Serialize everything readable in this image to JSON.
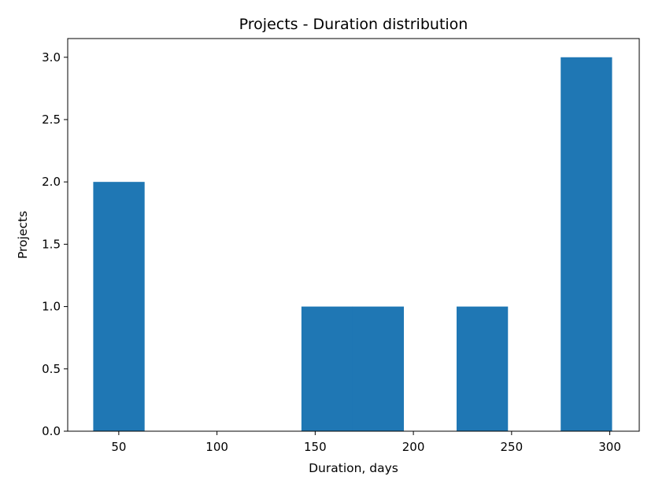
{
  "chart_data": {
    "type": "bar",
    "title": "Projects - Duration distribution",
    "xlabel": "Duration, days",
    "ylabel": "Projects",
    "xlim": [
      24,
      315
    ],
    "ylim": [
      0,
      3.15
    ],
    "xticks": [
      50,
      100,
      150,
      200,
      250,
      300
    ],
    "xtick_labels": [
      "50",
      "100",
      "150",
      "200",
      "250",
      "300"
    ],
    "yticks": [
      0,
      0.5,
      1,
      1.5,
      2,
      2.5,
      3
    ],
    "ytick_labels": [
      "0.0",
      "0.5",
      "1.0",
      "1.5",
      "2.0",
      "2.5",
      "3.0"
    ],
    "grid": false,
    "bins": [
      {
        "x0": 37,
        "x1": 63,
        "count": 2
      },
      {
        "x0": 63,
        "x1": 90,
        "count": 0
      },
      {
        "x0": 90,
        "x1": 116,
        "count": 0
      },
      {
        "x0": 116,
        "x1": 143,
        "count": 0
      },
      {
        "x0": 143,
        "x1": 169,
        "count": 1
      },
      {
        "x0": 169,
        "x1": 195,
        "count": 1
      },
      {
        "x0": 195,
        "x1": 222,
        "count": 0
      },
      {
        "x0": 222,
        "x1": 248,
        "count": 1
      },
      {
        "x0": 248,
        "x1": 275,
        "count": 0
      },
      {
        "x0": 275,
        "x1": 301,
        "count": 3
      }
    ],
    "colors": {
      "bar": "#1f77b4",
      "axis": "#000000",
      "background": "#ffffff"
    }
  }
}
